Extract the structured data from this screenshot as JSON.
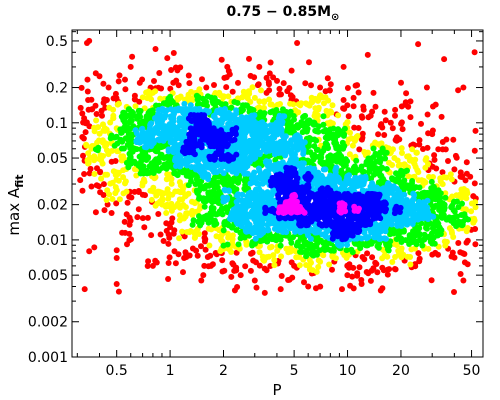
{
  "chart_data": {
    "type": "scatter",
    "title": "0.75 − 0.85M⊙",
    "xlabel": "P",
    "ylabel": "max A_fit",
    "x_scale": "log",
    "y_scale": "log",
    "xlim": [
      0.28,
      58
    ],
    "ylim": [
      0.001,
      0.62
    ],
    "x_ticks": [
      0.5,
      1,
      2,
      5,
      10,
      20,
      50
    ],
    "x_tick_labels": [
      "0.5",
      "1",
      "2",
      "5",
      "10",
      "20",
      "50"
    ],
    "y_ticks": [
      0.001,
      0.002,
      0.005,
      0.01,
      0.02,
      0.05,
      0.1,
      0.2,
      0.5
    ],
    "y_tick_labels": [
      "0.001",
      "0.002",
      "0.005",
      "0.01",
      "0.02",
      "0.05",
      "0.1",
      "0.2",
      "0.5"
    ],
    "grid": false,
    "legend": "none",
    "density_colors": [
      "#ff0000",
      "#ffff00",
      "#00ff00",
      "#00ccff",
      "#0000ff",
      "#ff00ff"
    ],
    "series": [
      {
        "name": "",
        "kind": "density-cloud",
        "points": [
          [
            0.35,
            0.5
          ],
          [
            0.34,
            0.48
          ],
          [
            5.2,
            0.48
          ],
          [
            13,
            0.38
          ],
          [
            25,
            0.47
          ],
          [
            52,
            0.4
          ],
          [
            35,
            0.35
          ],
          [
            0.4,
            0.25
          ],
          [
            0.6,
            0.3
          ],
          [
            1.1,
            0.28
          ],
          [
            2.1,
            0.3
          ],
          [
            9.5,
            0.3
          ],
          [
            20,
            0.22
          ],
          [
            28,
            0.2
          ],
          [
            0.45,
            0.2
          ],
          [
            0.8,
            0.18
          ],
          [
            1.6,
            0.2
          ],
          [
            3.5,
            0.18
          ],
          [
            7,
            0.2
          ],
          [
            14,
            0.18
          ],
          [
            45,
            0.2
          ],
          [
            0.32,
            0.12
          ],
          [
            0.38,
            0.14
          ],
          [
            0.55,
            0.12
          ],
          [
            0.9,
            0.11
          ],
          [
            1.3,
            0.13
          ],
          [
            2.4,
            0.1
          ],
          [
            3.2,
            0.12
          ],
          [
            4.5,
            0.11
          ],
          [
            6.5,
            0.1
          ],
          [
            8,
            0.08
          ],
          [
            11,
            0.07
          ],
          [
            18,
            0.09
          ],
          [
            30,
            0.08
          ],
          [
            0.5,
            0.09
          ],
          [
            0.7,
            0.08
          ],
          [
            1.2,
            0.07
          ],
          [
            2.0,
            0.08
          ],
          [
            2.8,
            0.07
          ],
          [
            4.0,
            0.06
          ],
          [
            5.5,
            0.045
          ],
          [
            7.5,
            0.04
          ],
          [
            10,
            0.035
          ],
          [
            15,
            0.04
          ],
          [
            22,
            0.035
          ],
          [
            40,
            0.04
          ],
          [
            0.36,
            0.06
          ],
          [
            0.6,
            0.05
          ],
          [
            1.0,
            0.05
          ],
          [
            1.8,
            0.045
          ],
          [
            2.6,
            0.04
          ],
          [
            3.8,
            0.03
          ],
          [
            5,
            0.025
          ],
          [
            6.5,
            0.02
          ],
          [
            8.5,
            0.018
          ],
          [
            10,
            0.02
          ],
          [
            12,
            0.022
          ],
          [
            14,
            0.018
          ],
          [
            18,
            0.015
          ],
          [
            25,
            0.02
          ],
          [
            35,
            0.018
          ],
          [
            50,
            0.015
          ],
          [
            2.2,
            0.015
          ],
          [
            3,
            0.012
          ],
          [
            4.2,
            0.01
          ],
          [
            6,
            0.009
          ],
          [
            9,
            0.01
          ],
          [
            13,
            0.009
          ],
          [
            20,
            0.008
          ],
          [
            30,
            0.01
          ],
          [
            0.35,
            0.008
          ],
          [
            0.5,
            0.007
          ],
          [
            0.8,
            0.006
          ],
          [
            1.2,
            0.007
          ],
          [
            1.7,
            0.006
          ],
          [
            2.5,
            0.005
          ],
          [
            3.5,
            0.0055
          ],
          [
            5,
            0.006
          ],
          [
            7,
            0.0065
          ],
          [
            10,
            0.006
          ],
          [
            16,
            0.0055
          ],
          [
            0.33,
            0.0038
          ],
          [
            0.5,
            0.0042
          ],
          [
            0.9,
            0.0035
          ],
          [
            1.5,
            0.0045
          ],
          [
            2.2,
            0.0032
          ],
          [
            3.0,
            0.0045
          ],
          [
            4.2,
            0.0038
          ],
          [
            6,
            0.004
          ],
          [
            12,
            0.0042
          ],
          [
            45,
            0.0045
          ]
        ]
      }
    ]
  }
}
